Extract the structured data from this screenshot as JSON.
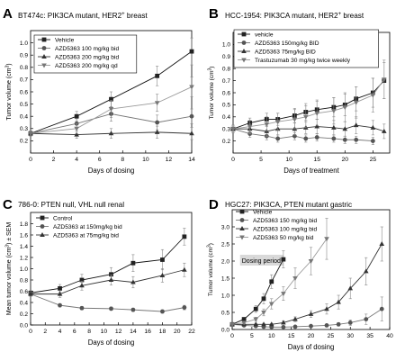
{
  "chart_data": [
    {
      "type": "line",
      "panel_letter": "A",
      "title": "BT474c: PIK3CA mutant, HER2+ breast",
      "title_sup": "+",
      "xlabel": "Days of dosing",
      "ylabel": "Tumor volume (cm3)",
      "xlim": [
        0,
        14
      ],
      "ylim": [
        0.1,
        1.1
      ],
      "xticks": [
        0,
        2,
        4,
        6,
        8,
        10,
        12,
        14
      ],
      "yticks": [
        0.2,
        0.3,
        0.4,
        0.5,
        0.6,
        0.7,
        0.8,
        0.9,
        1.0
      ],
      "legend_position": "top-left",
      "series": [
        {
          "name": "Vehicle",
          "marker": "square",
          "x": [
            0,
            4,
            7,
            11,
            14
          ],
          "y": [
            0.26,
            0.4,
            0.54,
            0.73,
            0.93
          ],
          "err": [
            0.02,
            0.04,
            0.06,
            0.08,
            0.11
          ]
        },
        {
          "name": "AZD5363  100 mg/kg bid",
          "marker": "circle",
          "x": [
            0,
            4,
            7,
            11,
            14
          ],
          "y": [
            0.26,
            0.34,
            0.42,
            0.35,
            0.4
          ],
          "err": [
            0.02,
            0.04,
            0.06,
            0.06,
            0.06
          ]
        },
        {
          "name": "AZD5363  200 mg/kg bid",
          "marker": "triangle-up",
          "x": [
            0,
            4,
            7,
            11,
            14
          ],
          "y": [
            0.26,
            0.25,
            0.26,
            0.27,
            0.26
          ],
          "err": [
            0.02,
            0.03,
            0.04,
            0.05,
            0.05
          ]
        },
        {
          "name": "AZD5363  200 mg/kg qd",
          "marker": "triangle-down",
          "x": [
            0,
            4,
            7,
            11,
            14
          ],
          "y": [
            0.26,
            0.3,
            0.46,
            0.51,
            0.64
          ],
          "err": [
            0.02,
            0.04,
            0.07,
            0.07,
            0.08
          ]
        }
      ]
    },
    {
      "type": "line",
      "panel_letter": "B",
      "title": "HCC-1954: PIK3CA mutant, HER2+ breast",
      "title_sup": "+",
      "xlabel": "Days of treatment",
      "ylabel": "Tumor volume (cm3)",
      "xlim": [
        0,
        28
      ],
      "ylim": [
        0.1,
        1.1
      ],
      "xticks": [
        0,
        5,
        10,
        15,
        20,
        25
      ],
      "yticks": [
        0.2,
        0.3,
        0.4,
        0.5,
        0.6,
        0.7,
        0.8,
        0.9,
        1.0
      ],
      "legend_position": "top-left",
      "series": [
        {
          "name": "vehicle",
          "marker": "square",
          "x": [
            0,
            3,
            6,
            8,
            11,
            13,
            15,
            18,
            20,
            22,
            25,
            27
          ],
          "y": [
            0.3,
            0.35,
            0.38,
            0.38,
            0.41,
            0.44,
            0.46,
            0.48,
            0.5,
            0.55,
            0.6,
            0.7
          ],
          "err": [
            0.03,
            0.04,
            0.05,
            0.05,
            0.06,
            0.07,
            0.08,
            0.08,
            0.09,
            0.1,
            0.12,
            0.15
          ]
        },
        {
          "name": "AZD5363 150mg/kg BID",
          "marker": "circle",
          "x": [
            0,
            3,
            6,
            8,
            11,
            13,
            15,
            18,
            20,
            22,
            25
          ],
          "y": [
            0.3,
            0.26,
            0.24,
            0.22,
            0.24,
            0.22,
            0.23,
            0.22,
            0.21,
            0.21,
            0.2
          ],
          "err": [
            0.03,
            0.03,
            0.03,
            0.03,
            0.03,
            0.03,
            0.03,
            0.03,
            0.03,
            0.03,
            0.03
          ]
        },
        {
          "name": "AZD5363 75mg/kg BID",
          "marker": "triangle-up",
          "x": [
            0,
            3,
            6,
            8,
            11,
            13,
            15,
            18,
            20,
            22,
            25,
            27
          ],
          "y": [
            0.3,
            0.3,
            0.28,
            0.3,
            0.3,
            0.31,
            0.32,
            0.31,
            0.3,
            0.33,
            0.31,
            0.28
          ],
          "err": [
            0.03,
            0.04,
            0.04,
            0.05,
            0.05,
            0.05,
            0.06,
            0.06,
            0.06,
            0.07,
            0.06,
            0.06
          ]
        },
        {
          "name": "Trastuzumab  30 mg/kg twice weekly",
          "marker": "triangle-down",
          "x": [
            0,
            3,
            6,
            8,
            11,
            13,
            15,
            18,
            20,
            22,
            25,
            27
          ],
          "y": [
            0.3,
            0.32,
            0.34,
            0.36,
            0.38,
            0.4,
            0.43,
            0.45,
            0.48,
            0.52,
            0.58,
            0.71
          ],
          "err": [
            0.03,
            0.05,
            0.06,
            0.07,
            0.08,
            0.09,
            0.1,
            0.11,
            0.12,
            0.13,
            0.14,
            0.16
          ]
        }
      ]
    },
    {
      "type": "line",
      "panel_letter": "C",
      "title": "786-0:  PTEN null, VHL null renal",
      "xlabel": "Days of dosing",
      "ylabel": "Mean tumor volume (cm3) ± SEM",
      "xlim": [
        0,
        22
      ],
      "ylim": [
        0,
        2.0
      ],
      "xticks": [
        0,
        2,
        4,
        6,
        8,
        10,
        12,
        14,
        16,
        18,
        20,
        22
      ],
      "yticks": [
        0.0,
        0.2,
        0.4,
        0.6,
        0.8,
        1.0,
        1.2,
        1.4,
        1.6,
        1.8
      ],
      "legend_position": "top-left",
      "series": [
        {
          "name": "Control",
          "marker": "square",
          "x": [
            0,
            4,
            7,
            11,
            14,
            18,
            21
          ],
          "y": [
            0.57,
            0.65,
            0.8,
            0.9,
            1.1,
            1.16,
            1.57
          ],
          "err": [
            0.04,
            0.07,
            0.1,
            0.12,
            0.15,
            0.18,
            0.15
          ]
        },
        {
          "name": "AZD5363 at 150mg/kg bid",
          "marker": "circle",
          "x": [
            0,
            4,
            7,
            11,
            14,
            18,
            21
          ],
          "y": [
            0.55,
            0.35,
            0.3,
            0.29,
            0.27,
            0.24,
            0.31
          ],
          "err": [
            0.04,
            0.03,
            0.03,
            0.03,
            0.03,
            0.03,
            0.04
          ]
        },
        {
          "name": "AZD5363 at 75mg/kg bid",
          "marker": "triangle-up",
          "x": [
            0,
            4,
            7,
            11,
            14,
            18,
            21
          ],
          "y": [
            0.55,
            0.55,
            0.7,
            0.8,
            0.76,
            0.88,
            0.98
          ],
          "err": [
            0.04,
            0.06,
            0.08,
            0.09,
            0.1,
            0.12,
            0.12
          ]
        }
      ]
    },
    {
      "type": "line",
      "panel_letter": "D",
      "title": "HGC27: PIK3CA, PTEN mutant gastric",
      "xlabel": "Days of dosing",
      "ylabel": "Tumor volume (cm3)",
      "xlim": [
        0,
        40
      ],
      "ylim": [
        0,
        3.5
      ],
      "xticks": [
        0,
        5,
        10,
        15,
        20,
        25,
        30,
        35,
        40
      ],
      "yticks": [
        0.0,
        0.5,
        1.0,
        1.5,
        2.0,
        2.5,
        3.0
      ],
      "legend_position": "top-left",
      "annotation": "Dosing period",
      "annotation_range": [
        2,
        13
      ],
      "series": [
        {
          "name": "Vehicle",
          "marker": "square",
          "x": [
            0,
            3,
            6,
            8,
            10,
            13
          ],
          "y": [
            0.15,
            0.3,
            0.6,
            0.9,
            1.4,
            2.05
          ],
          "err": [
            0.02,
            0.05,
            0.1,
            0.15,
            0.2,
            0.25
          ]
        },
        {
          "name": "AZD5363  150 mg/kg bid",
          "marker": "circle",
          "x": [
            0,
            3,
            6,
            8,
            10,
            13,
            16,
            20,
            24,
            27,
            30,
            34,
            38
          ],
          "y": [
            0.15,
            0.12,
            0.1,
            0.08,
            0.07,
            0.07,
            0.08,
            0.1,
            0.12,
            0.15,
            0.2,
            0.3,
            0.6
          ],
          "err": [
            0.02,
            0.02,
            0.02,
            0.02,
            0.02,
            0.02,
            0.02,
            0.03,
            0.03,
            0.05,
            0.08,
            0.15,
            0.35
          ]
        },
        {
          "name": "AZD5363  100 mg/kg bid",
          "marker": "triangle-up",
          "x": [
            0,
            3,
            6,
            8,
            10,
            13,
            16,
            20,
            24,
            27,
            30,
            34,
            38
          ],
          "y": [
            0.15,
            0.15,
            0.15,
            0.15,
            0.15,
            0.2,
            0.3,
            0.45,
            0.6,
            0.8,
            1.2,
            1.7,
            2.5
          ],
          "err": [
            0.02,
            0.02,
            0.03,
            0.03,
            0.03,
            0.05,
            0.07,
            0.1,
            0.15,
            0.2,
            0.3,
            0.4,
            0.5
          ]
        },
        {
          "name": "AZD5363  50 mg/kg bid",
          "marker": "triangle-down",
          "x": [
            0,
            3,
            6,
            8,
            10,
            13,
            16,
            20,
            24
          ],
          "y": [
            0.15,
            0.2,
            0.3,
            0.5,
            0.75,
            1.05,
            1.5,
            2.0,
            2.65
          ],
          "err": [
            0.02,
            0.04,
            0.06,
            0.1,
            0.15,
            0.2,
            0.3,
            0.4,
            0.6
          ]
        }
      ]
    }
  ]
}
